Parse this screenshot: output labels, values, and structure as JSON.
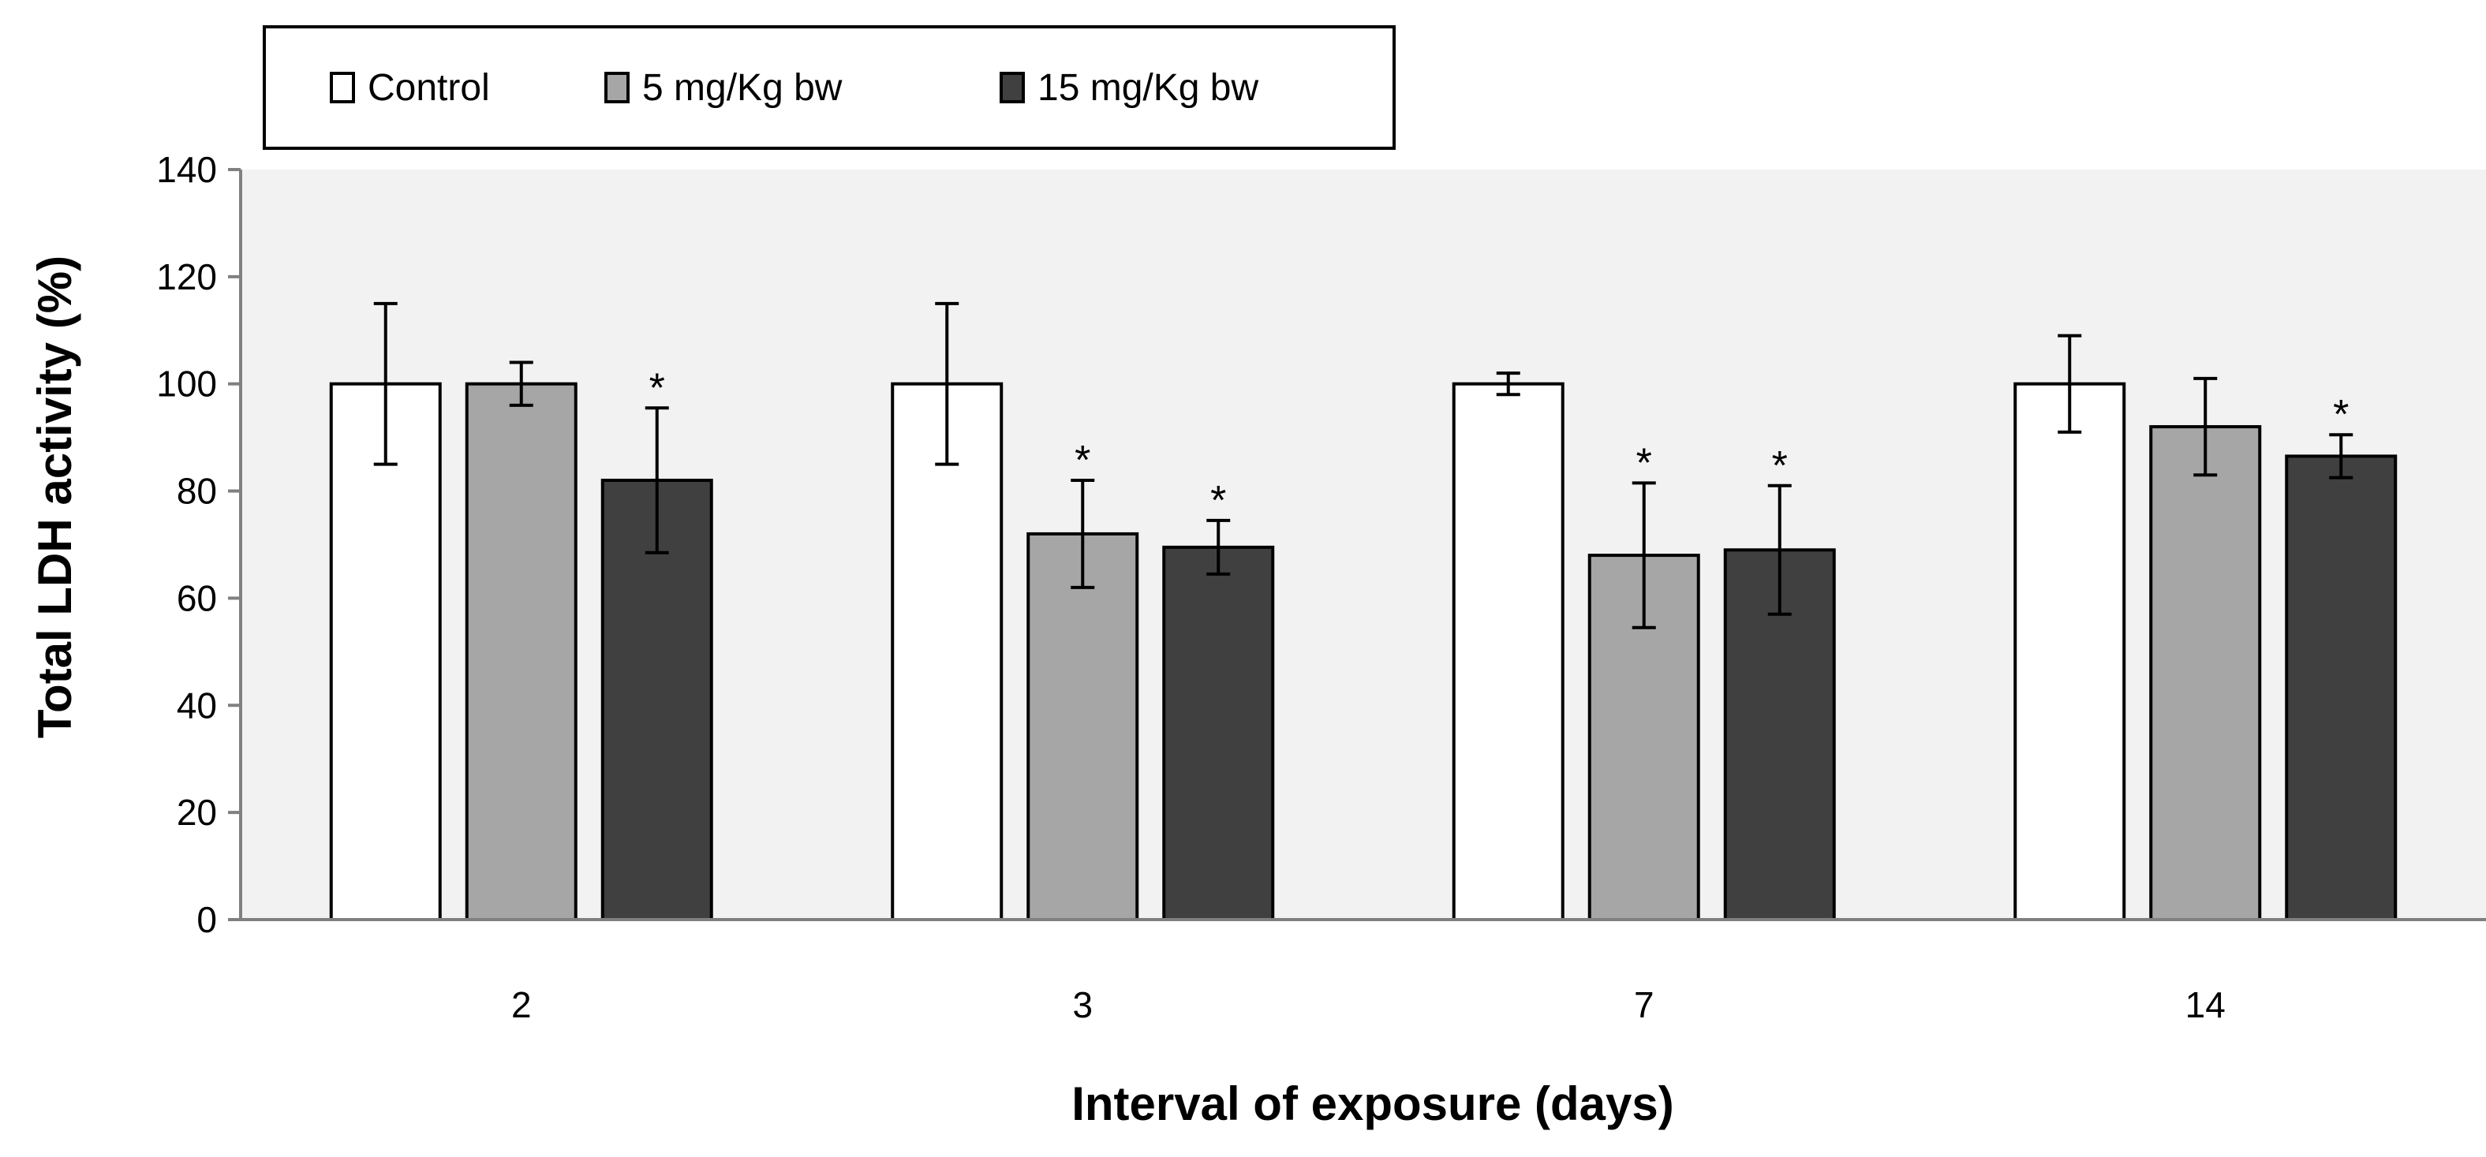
{
  "chart_data": {
    "type": "bar",
    "title": "",
    "xlabel": "Interval of exposure (days)",
    "ylabel": "Total LDH activity (%)",
    "ylim": [
      0,
      140
    ],
    "yticks": [
      0,
      20,
      40,
      60,
      80,
      100,
      120,
      140
    ],
    "grid": false,
    "legend_position": "top-left",
    "background_color": "#f2f2f2",
    "categories": [
      "2",
      "3",
      "7",
      "14"
    ],
    "series": [
      {
        "name": "Control",
        "color": "#ffffff",
        "values": [
          100,
          100,
          100,
          100
        ],
        "errors": [
          15,
          15,
          2,
          9
        ],
        "significant": [
          false,
          false,
          false,
          false
        ]
      },
      {
        "name": "5 mg/Kg bw",
        "color": "#a6a6a6",
        "values": [
          100,
          72,
          68,
          92
        ],
        "errors": [
          4,
          10,
          13.5,
          9
        ],
        "significant": [
          false,
          true,
          true,
          false
        ]
      },
      {
        "name": "15 mg/Kg bw",
        "color": "#404040",
        "values": [
          82,
          69.5,
          69,
          86.5
        ],
        "errors": [
          13.5,
          5,
          12,
          4
        ],
        "significant": [
          true,
          true,
          true,
          true
        ]
      }
    ],
    "significance_marker": "*"
  }
}
